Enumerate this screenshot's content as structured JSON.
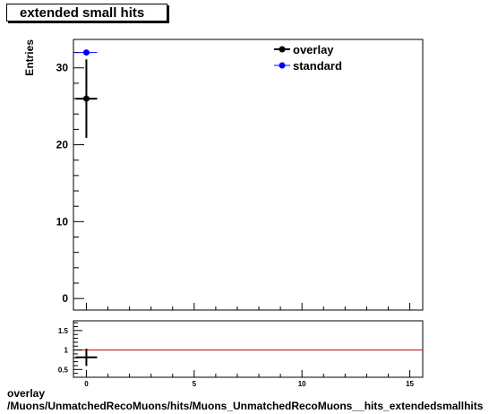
{
  "title": "extended small hits",
  "footer": {
    "line1": "overlay",
    "line2": "/Muons/UnmatchedRecoMuons/hits/Muons_UnmatchedRecoMuons__hits_extendedsmallhits"
  },
  "chart_data": [
    {
      "type": "scatter",
      "panel": "main",
      "ylabel": "Entries",
      "xlim": [
        -0.6,
        15.6
      ],
      "ylim": [
        -1.5,
        33.7
      ],
      "yticks": [
        0,
        10,
        20,
        30
      ],
      "series": [
        {
          "name": "overlay",
          "color": "#000000",
          "points": [
            {
              "x": 0,
              "y": 26,
              "yerr_low": 5.1,
              "yerr_high": 5.1,
              "xerr": 0.5
            }
          ]
        },
        {
          "name": "standard",
          "color": "#0000ff",
          "points": [
            {
              "x": 0,
              "y": 32,
              "yerr_low": 0,
              "yerr_high": 0,
              "xerr": 0.5
            }
          ]
        }
      ],
      "legend": {
        "position": "top-right",
        "entries": [
          "overlay",
          "standard"
        ]
      }
    },
    {
      "type": "scatter",
      "panel": "ratio",
      "xlim": [
        -0.6,
        15.6
      ],
      "ylim": [
        0.3,
        1.75
      ],
      "xticks": [
        0,
        5,
        10,
        15
      ],
      "yticks": [
        0.5,
        1,
        1.5
      ],
      "reference_line": {
        "y": 1,
        "color": "#cc0000"
      },
      "series": [
        {
          "name": "ratio",
          "color": "#000000",
          "points": [
            {
              "x": 0,
              "y": 0.8125,
              "yerr_low": 0.22,
              "yerr_high": 0.22,
              "xerr": 0.5
            }
          ]
        }
      ]
    }
  ]
}
